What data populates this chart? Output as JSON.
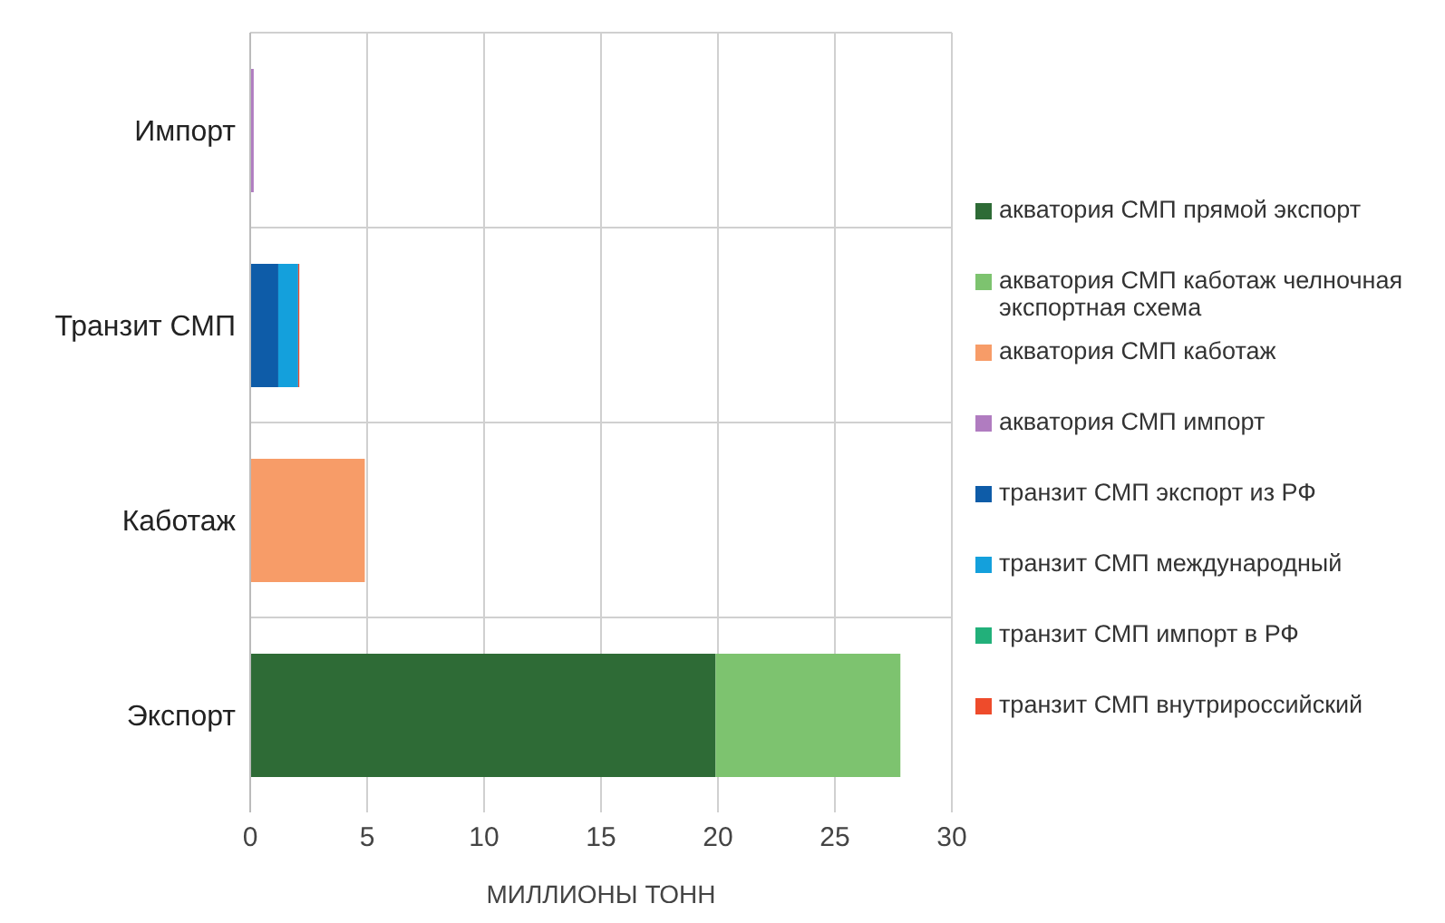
{
  "chart_data": {
    "type": "bar",
    "orientation": "horizontal",
    "stacked": true,
    "xlabel": "МИЛЛИОНЫ ТОНН",
    "categories": [
      "Импорт",
      "Транзит СМП",
      "Каботаж",
      "Экспорт"
    ],
    "series": [
      {
        "name": "акватория СМП прямой экспорт",
        "color": "#2e6b36",
        "values": [
          null,
          null,
          null,
          19.9
        ]
      },
      {
        "name": "акватория СМП каботаж челночная экспортная схема",
        "color": "#7dc36f",
        "values": [
          null,
          null,
          null,
          7.9
        ]
      },
      {
        "name": "акватория СМП каботаж",
        "color": "#f79c68",
        "values": [
          null,
          null,
          4.9,
          null
        ]
      },
      {
        "name": "акватория СМП импорт",
        "color": "#b07cc0",
        "values": [
          0.15,
          null,
          null,
          null
        ]
      },
      {
        "name": "транзит СМП экспорт из РФ",
        "color": "#0e5ca8",
        "values": [
          null,
          1.2,
          null,
          null
        ]
      },
      {
        "name": "транзит СМП международный",
        "color": "#14a0dc",
        "values": [
          null,
          0.85,
          null,
          null
        ]
      },
      {
        "name": "транзит СМП импорт в РФ",
        "color": "#22b07a",
        "values": [
          null,
          null,
          null,
          null
        ]
      },
      {
        "name": "транзит СМП внутрироссийский",
        "color": "#ee4b2b",
        "values": [
          null,
          0.05,
          null,
          null
        ]
      }
    ],
    "xlim": [
      0,
      30
    ],
    "xticks": [
      0,
      5,
      10,
      15,
      20,
      25,
      30
    ],
    "grid": true,
    "legend": "right"
  }
}
